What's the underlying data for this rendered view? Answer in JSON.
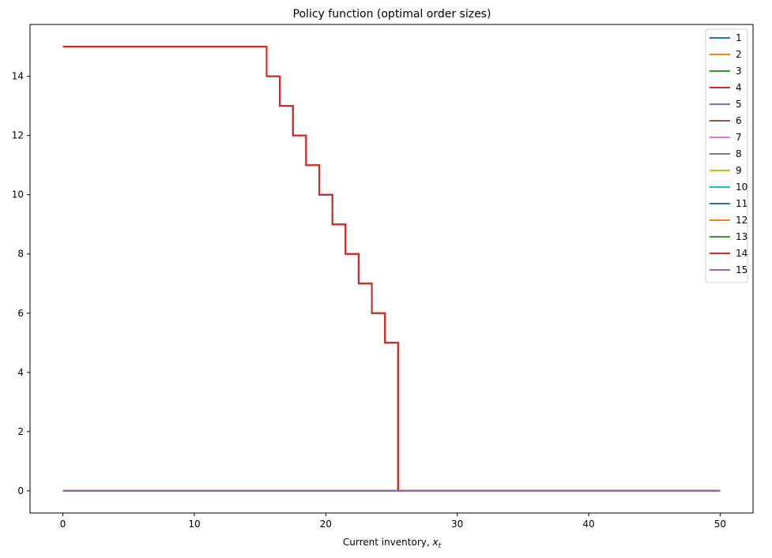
{
  "chart_data": {
    "type": "line",
    "title": "Policy function (optimal order sizes)",
    "xlabel": "Current inventory, ",
    "xlabel_math": "x",
    "xlabel_sub": "t",
    "ylabel": "",
    "xlim": [
      -2.5,
      52.5
    ],
    "ylim": [
      -0.75,
      15.75
    ],
    "xticks": [
      0,
      10,
      20,
      30,
      40,
      50
    ],
    "yticks": [
      0,
      2,
      4,
      6,
      8,
      10,
      12,
      14
    ],
    "grid": false,
    "legend_position": "top-right",
    "step_series": {
      "description_note": "",
      "x": [
        0,
        15.5,
        15.5,
        16.5,
        16.5,
        17.5,
        17.5,
        18.5,
        18.5,
        19.5,
        19.5,
        20.5,
        20.5,
        21.5,
        21.5,
        22.5,
        22.5,
        23.5,
        23.5,
        24.5,
        24.5,
        25.5,
        25.5,
        50
      ],
      "y": [
        15,
        15,
        14,
        14,
        13,
        13,
        12,
        12,
        11,
        11,
        10,
        10,
        9,
        9,
        8,
        8,
        7,
        7,
        6,
        6,
        5,
        5,
        0,
        0
      ]
    },
    "series": [
      {
        "name": "1",
        "color": "#1f77b4",
        "shape": "zero"
      },
      {
        "name": "2",
        "color": "#ff7f0e",
        "shape": "zero"
      },
      {
        "name": "3",
        "color": "#2ca02c",
        "shape": "zero"
      },
      {
        "name": "4",
        "color": "#d62728",
        "shape": "step"
      },
      {
        "name": "5",
        "color": "#9467bd",
        "shape": "zero"
      },
      {
        "name": "6",
        "color": "#8c564b",
        "shape": "step"
      },
      {
        "name": "7",
        "color": "#e377c2",
        "shape": "zero"
      },
      {
        "name": "8",
        "color": "#7f7f7f",
        "shape": "zero"
      },
      {
        "name": "9",
        "color": "#bcbd22",
        "shape": "zero"
      },
      {
        "name": "10",
        "color": "#17becf",
        "shape": "zero"
      },
      {
        "name": "11",
        "color": "#1f77b4",
        "shape": "zero"
      },
      {
        "name": "12",
        "color": "#ff7f0e",
        "shape": "zero"
      },
      {
        "name": "13",
        "color": "#2ca02c",
        "shape": "zero"
      },
      {
        "name": "14",
        "color": "#d62728",
        "shape": "step"
      },
      {
        "name": "15",
        "color": "#9467bd",
        "shape": "zero"
      }
    ],
    "zero_series_x": [
      0,
      50
    ],
    "zero_series_y": [
      0,
      0
    ]
  }
}
